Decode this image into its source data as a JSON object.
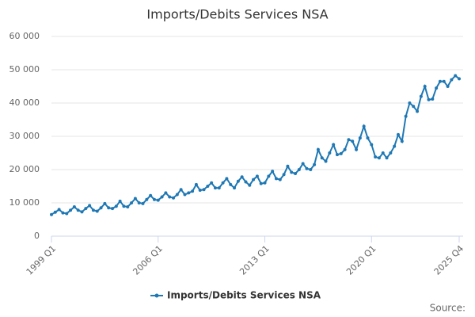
{
  "chart_data": {
    "type": "line",
    "title": "Imports/Debits Services NSA",
    "source": "Source:",
    "categories": [
      "1999 Q1",
      null,
      null,
      null,
      null,
      null,
      null,
      null,
      null,
      null,
      null,
      null,
      null,
      null,
      null,
      null,
      null,
      null,
      null,
      null,
      null,
      null,
      null,
      null,
      null,
      null,
      null,
      null,
      "2006 Q1",
      null,
      null,
      null,
      null,
      null,
      null,
      null,
      null,
      null,
      null,
      null,
      null,
      null,
      null,
      null,
      null,
      null,
      null,
      null,
      null,
      null,
      null,
      null,
      null,
      null,
      null,
      null,
      "2013 Q1",
      null,
      null,
      null,
      null,
      null,
      null,
      null,
      null,
      null,
      null,
      null,
      null,
      null,
      null,
      null,
      null,
      null,
      null,
      null,
      null,
      null,
      null,
      null,
      null,
      null,
      null,
      null,
      "2020 Q1",
      null,
      null,
      null,
      null,
      null,
      null,
      null,
      null,
      null,
      null,
      null,
      null,
      null,
      null,
      null,
      null,
      null,
      null,
      null,
      null,
      null,
      null,
      "2025 Q4"
    ],
    "series": [
      {
        "name": "Imports/Debits Services NSA",
        "color": "#1f78b4",
        "values": [
          6500,
          7200,
          8000,
          7000,
          6800,
          7800,
          8800,
          7800,
          7300,
          8300,
          9200,
          7800,
          7500,
          8500,
          9800,
          8500,
          8300,
          9000,
          10500,
          9000,
          8800,
          10000,
          11300,
          10000,
          9800,
          11000,
          12200,
          11000,
          10800,
          11800,
          13000,
          11800,
          11500,
          12500,
          14000,
          12500,
          13000,
          13500,
          15500,
          13800,
          14000,
          15000,
          16000,
          14500,
          14500,
          16000,
          17300,
          15500,
          14500,
          16500,
          17800,
          16300,
          15300,
          17000,
          18000,
          15800,
          16000,
          18000,
          19500,
          17300,
          17000,
          18500,
          21000,
          19200,
          18800,
          20000,
          21800,
          20300,
          20000,
          21500,
          26000,
          23500,
          22500,
          25000,
          27500,
          24500,
          24800,
          26000,
          29000,
          28500,
          26000,
          29500,
          33000,
          29500,
          27500,
          23800,
          23500,
          25000,
          23500,
          25000,
          27000,
          30500,
          28500,
          36000,
          40000,
          39000,
          37500,
          42000,
          45000,
          41000,
          41200,
          44500,
          46500,
          46500,
          45000,
          47000,
          48200,
          47300
        ]
      }
    ],
    "ylim": [
      0,
      60000
    ],
    "yticks": [
      0,
      {
        "value": 10000,
        "label": "10 000"
      },
      {
        "value": 20000,
        "label": "20 000"
      },
      {
        "value": 30000,
        "label": "30 000"
      },
      {
        "value": 40000,
        "label": "40 000"
      },
      {
        "value": 50000,
        "label": "50 000"
      },
      {
        "value": 60000,
        "label": "60 000"
      }
    ],
    "grid": true
  }
}
